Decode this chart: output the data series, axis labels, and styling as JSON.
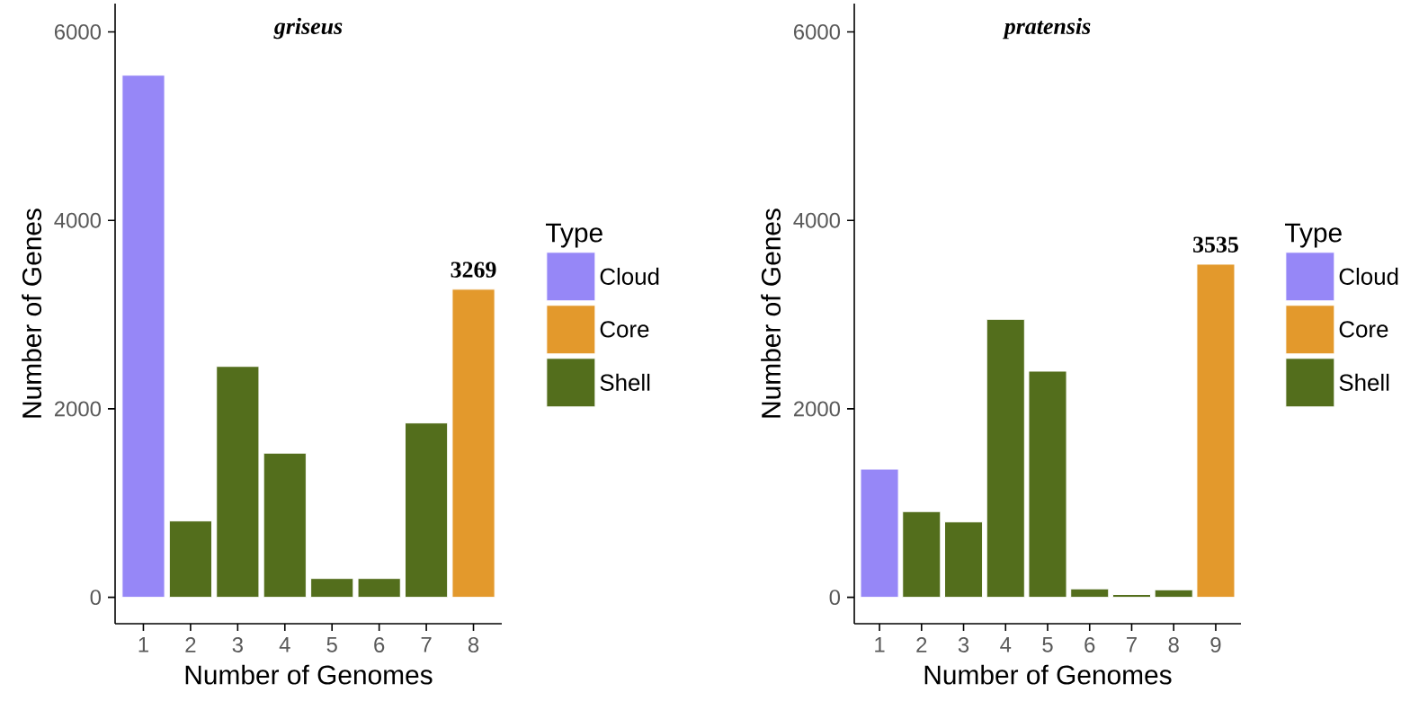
{
  "chart_data": [
    {
      "type": "bar",
      "title": "griseus",
      "xlabel": "Number of Genomes",
      "ylabel": "Number of Genes",
      "legend_title": "Type",
      "legend": "right",
      "categories": [
        "1",
        "2",
        "3",
        "4",
        "5",
        "6",
        "7",
        "8"
      ],
      "ylim": [
        -280,
        6300
      ],
      "yticks": [
        0,
        2000,
        4000,
        6000
      ],
      "series": [
        {
          "name": "Cloud",
          "color": "#9687f7",
          "values": [
            5540,
            null,
            null,
            null,
            null,
            null,
            null,
            null
          ]
        },
        {
          "name": "Core",
          "color": "#e3992c",
          "values": [
            null,
            null,
            null,
            null,
            null,
            null,
            null,
            3269
          ],
          "value_labels": [
            null,
            null,
            null,
            null,
            null,
            null,
            null,
            "3269"
          ]
        },
        {
          "name": "Shell",
          "color": "#536e1c",
          "values": [
            null,
            810,
            2450,
            1530,
            200,
            200,
            1850,
            null
          ]
        }
      ]
    },
    {
      "type": "bar",
      "title": "pratensis",
      "xlabel": "Number of Genomes",
      "ylabel": "Number of Genes",
      "legend_title": "Type",
      "legend": "right",
      "categories": [
        "1",
        "2",
        "3",
        "4",
        "5",
        "6",
        "7",
        "8",
        "9"
      ],
      "ylim": [
        -280,
        6300
      ],
      "yticks": [
        0,
        2000,
        4000,
        6000
      ],
      "series": [
        {
          "name": "Cloud",
          "color": "#9687f7",
          "values": [
            1360,
            null,
            null,
            null,
            null,
            null,
            null,
            null,
            null
          ]
        },
        {
          "name": "Core",
          "color": "#e3992c",
          "values": [
            null,
            null,
            null,
            null,
            null,
            null,
            null,
            null,
            3535
          ],
          "value_labels": [
            null,
            null,
            null,
            null,
            null,
            null,
            null,
            null,
            "3535"
          ]
        },
        {
          "name": "Shell",
          "color": "#536e1c",
          "values": [
            null,
            910,
            800,
            2950,
            2400,
            90,
            30,
            80,
            null
          ]
        }
      ]
    }
  ]
}
